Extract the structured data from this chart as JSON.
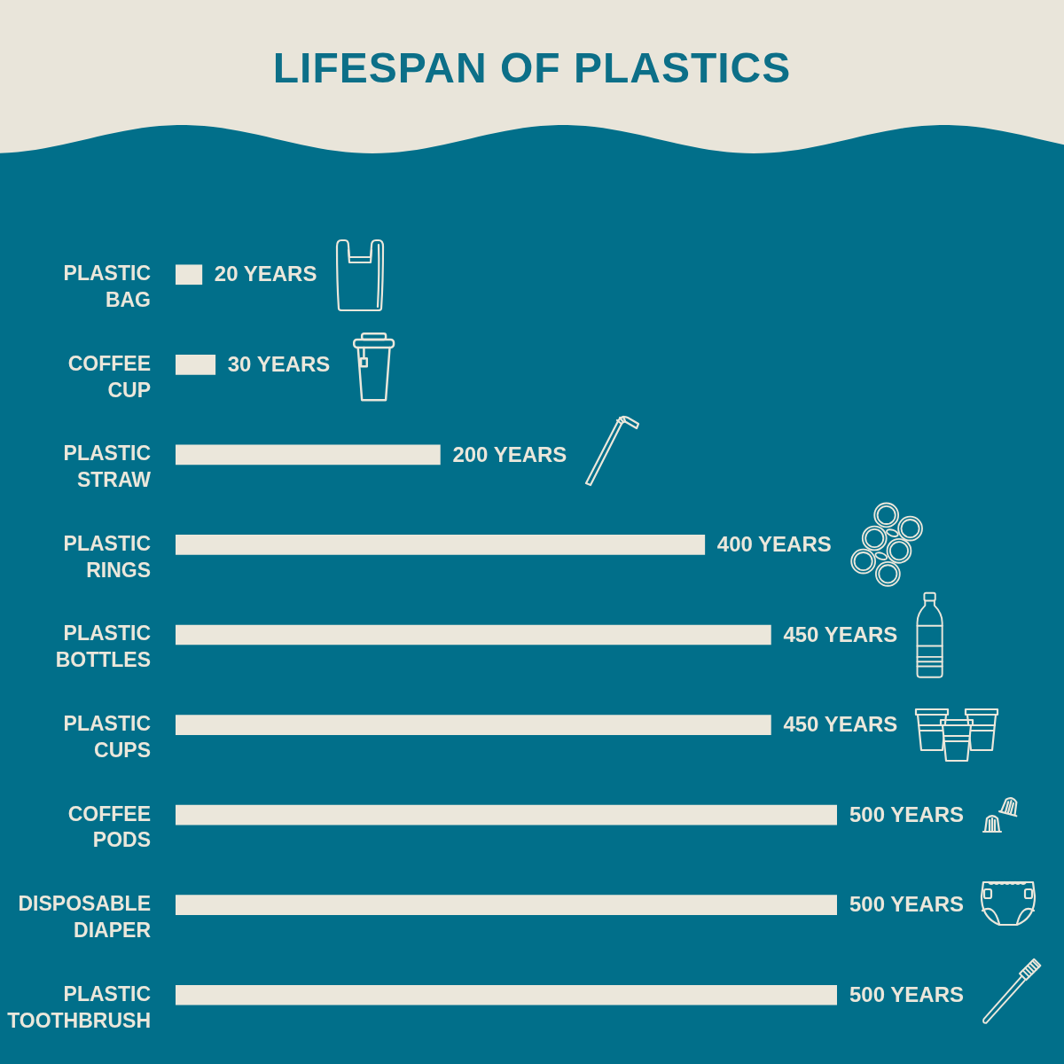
{
  "chart_data": {
    "type": "bar",
    "orientation": "horizontal",
    "title": "LIFESPAN OF PLASTICS",
    "categories": [
      "PLASTIC BAG",
      "COFFEE CUP",
      "PLASTIC STRAW",
      "PLASTIC RINGS",
      "PLASTIC BOTTLES",
      "PLASTIC CUPS",
      "COFFEE PODS",
      "DISPOSABLE DIAPER",
      "PLASTIC TOOTHBRUSH"
    ],
    "values": [
      20,
      30,
      200,
      400,
      450,
      450,
      500,
      500,
      500
    ],
    "value_labels": [
      "20 YEARS",
      "30 YEARS",
      "200 YEARS",
      "400 YEARS",
      "450 YEARS",
      "450 YEARS",
      "500 YEARS",
      "500 YEARS",
      "500 YEARS"
    ],
    "color": "#ebe7db",
    "tick_labels": "y"
  }
}
